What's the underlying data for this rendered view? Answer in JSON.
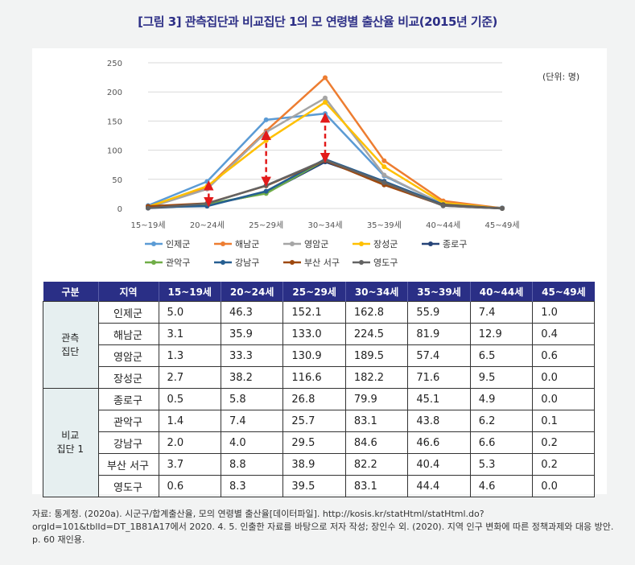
{
  "title": "[그림 3] 관측집단과 비교집단 1의 모 연령별 출산율 비교(2015년 기준)",
  "unit_label": "(단위: 명)",
  "chart_data": {
    "type": "line",
    "categories": [
      "15~19세",
      "20~24세",
      "25~29세",
      "30~34세",
      "35~39세",
      "40~44세",
      "45~49세"
    ],
    "ylim": [
      0,
      250
    ],
    "yticks": [
      0,
      50,
      100,
      150,
      200,
      250
    ],
    "grid": true,
    "legend_position": "bottom",
    "series": [
      {
        "name": "인제군",
        "color": "#5b9bd5",
        "values": [
          5.0,
          46.3,
          152.1,
          162.8,
          55.9,
          7.4,
          1.0
        ]
      },
      {
        "name": "해남군",
        "color": "#ed7d31",
        "values": [
          3.1,
          35.9,
          133.0,
          224.5,
          81.9,
          12.9,
          0.4
        ]
      },
      {
        "name": "영암군",
        "color": "#a5a5a5",
        "values": [
          1.3,
          33.3,
          130.9,
          189.5,
          57.4,
          6.5,
          0.6
        ]
      },
      {
        "name": "장성군",
        "color": "#ffc000",
        "values": [
          2.7,
          38.2,
          116.6,
          182.2,
          71.6,
          9.5,
          0.0
        ]
      },
      {
        "name": "종로구",
        "color": "#264478",
        "values": [
          0.5,
          5.8,
          26.8,
          79.9,
          45.1,
          4.9,
          0.0
        ]
      },
      {
        "name": "관악구",
        "color": "#70ad47",
        "values": [
          1.4,
          7.4,
          25.7,
          83.1,
          43.8,
          6.2,
          0.1
        ]
      },
      {
        "name": "강남구",
        "color": "#255e91",
        "values": [
          2.0,
          4.0,
          29.5,
          84.6,
          46.6,
          6.6,
          0.2
        ]
      },
      {
        "name": "부산 서구",
        "color": "#9e480e",
        "values": [
          3.7,
          8.8,
          38.9,
          82.2,
          40.4,
          5.3,
          0.2
        ]
      },
      {
        "name": "영도구",
        "color": "#636363",
        "values": [
          0.6,
          8.3,
          39.5,
          83.1,
          44.4,
          4.6,
          0.0
        ]
      }
    ],
    "gap_arrows": [
      {
        "category": "20~24세",
        "from": 46.3,
        "to": 4.0
      },
      {
        "category": "25~29세",
        "from": 133.0,
        "to": 38.9
      },
      {
        "category": "30~34세",
        "from": 162.8,
        "to": 79.9
      }
    ]
  },
  "table": {
    "headers": [
      "구분",
      "지역",
      "15~19세",
      "20~24세",
      "25~29세",
      "30~34세",
      "35~39세",
      "40~44세",
      "45~49세"
    ],
    "groups": [
      {
        "label": "관측\n집단",
        "rows": [
          {
            "region": "인제군",
            "values": [
              "5.0",
              "46.3",
              "152.1",
              "162.8",
              "55.9",
              "7.4",
              "1.0"
            ]
          },
          {
            "region": "해남군",
            "values": [
              "3.1",
              "35.9",
              "133.0",
              "224.5",
              "81.9",
              "12.9",
              "0.4"
            ]
          },
          {
            "region": "영암군",
            "values": [
              "1.3",
              "33.3",
              "130.9",
              "189.5",
              "57.4",
              "6.5",
              "0.6"
            ]
          },
          {
            "region": "장성군",
            "values": [
              "2.7",
              "38.2",
              "116.6",
              "182.2",
              "71.6",
              "9.5",
              "0.0"
            ]
          }
        ]
      },
      {
        "label": "비교\n집단 1",
        "rows": [
          {
            "region": "종로구",
            "values": [
              "0.5",
              "5.8",
              "26.8",
              "79.9",
              "45.1",
              "4.9",
              "0.0"
            ]
          },
          {
            "region": "관악구",
            "values": [
              "1.4",
              "7.4",
              "25.7",
              "83.1",
              "43.8",
              "6.2",
              "0.1"
            ]
          },
          {
            "region": "강남구",
            "values": [
              "2.0",
              "4.0",
              "29.5",
              "84.6",
              "46.6",
              "6.6",
              "0.2"
            ]
          },
          {
            "region": "부산 서구",
            "values": [
              "3.7",
              "8.8",
              "38.9",
              "82.2",
              "40.4",
              "5.3",
              "0.2"
            ]
          },
          {
            "region": "영도구",
            "values": [
              "0.6",
              "8.3",
              "39.5",
              "83.1",
              "44.4",
              "4.6",
              "0.0"
            ]
          }
        ]
      }
    ]
  },
  "source": "자료: 통계청. (2020a). 시군구/합계출산율, 모의 연령별 출산율[데이터파일]. http://kosis.kr/statHtml/statHtml.do?orgId=101&tblId=DT_1B81A17에서 2020. 4. 5. 인출한 자료를 바탕으로 저자 작성; 장인수 외. (2020). 지역 인구 변화에 따른 정책과제와 대응 방안. p. 60 재인용."
}
